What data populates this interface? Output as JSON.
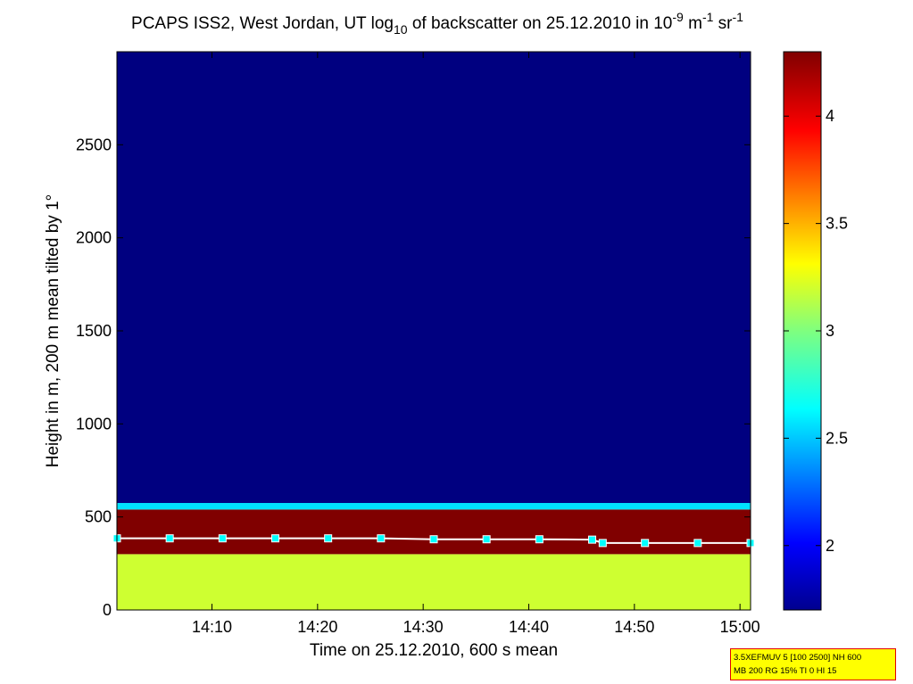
{
  "chart_data": {
    "type": "heatmap",
    "title_main": "PCAPS ISS2, West Jordan, UT log",
    "title_sub": "10",
    "title_mid": " of backscatter on 25.12.2010 in 10",
    "title_sup1": "-9",
    "title_mid2": " m",
    "title_sup2": "-1",
    "title_mid3": " sr",
    "title_sup3": "-1",
    "xlabel": "Time on 25.12.2010, 600 s mean",
    "ylabel": "Height in m, 200 m mean tilted by 1°",
    "x_range": [
      "14:01",
      "15:01"
    ],
    "x_ticks": [
      "14:10",
      "14:20",
      "14:30",
      "14:40",
      "14:50",
      "15:00"
    ],
    "x_tick_minutes": [
      9,
      19,
      29,
      39,
      49,
      59
    ],
    "x_range_minutes": [
      0,
      60
    ],
    "y_ticks": [
      0,
      500,
      1000,
      1500,
      2000,
      2500
    ],
    "ylim": [
      0,
      3000
    ],
    "colorbar": {
      "ticks": [
        2,
        2.5,
        3,
        3.5,
        4
      ],
      "range": [
        1.7,
        4.3
      ],
      "colormap": "jet"
    },
    "layers": [
      {
        "from_m": 0,
        "to_m": 300,
        "value": 3.2
      },
      {
        "from_m": 300,
        "to_m": 540,
        "value": 4.3
      },
      {
        "from_m": 540,
        "to_m": 575,
        "value": 2.6
      },
      {
        "from_m": 575,
        "to_m": 3000,
        "value": 1.7
      }
    ],
    "series": [
      {
        "marker": "cyan squares",
        "x_minutes": [
          0,
          5,
          10,
          15,
          20,
          25,
          30,
          35,
          40,
          45,
          46,
          50,
          55,
          60
        ],
        "y": [
          385,
          385,
          385,
          385,
          385,
          385,
          380,
          380,
          380,
          378,
          360,
          360,
          360,
          360
        ]
      }
    ],
    "grid": false
  },
  "info_box": {
    "line1": "3.5XEFMUV 5 [100 2500] NH 600",
    "line2": "MB 200 RG 15% TI 0 HI 15"
  }
}
